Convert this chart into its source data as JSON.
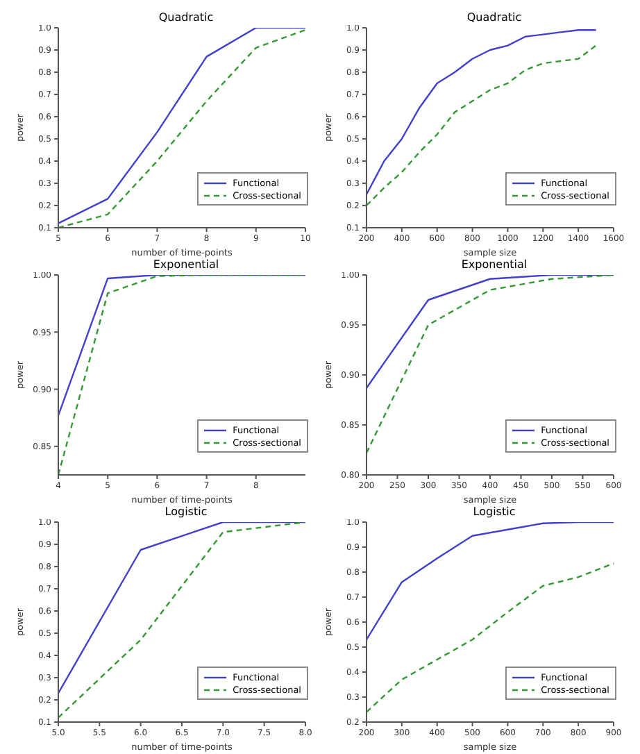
{
  "chart_data": [
    {
      "type": "line",
      "title": "Quadratic",
      "xlabel": "number of time-points",
      "ylabel": "power",
      "x": [
        5,
        6,
        7,
        8,
        9,
        10
      ],
      "xlim": [
        5,
        10
      ],
      "xticks": [
        5,
        6,
        7,
        8,
        9,
        10
      ],
      "ylim": [
        0.1,
        1.0
      ],
      "yticks": [
        0.1,
        0.2,
        0.3,
        0.4,
        0.5,
        0.6,
        0.7,
        0.8,
        0.9,
        {
          "value": 1,
          "label": "1.0"
        }
      ],
      "grid": false,
      "legend": "bottom right",
      "marker": "none",
      "series": [
        {
          "name": "Functional",
          "color": "#4040cc",
          "line_style": "solid",
          "values": [
            0.12,
            0.23,
            0.53,
            0.87,
            1.0,
            1.0
          ]
        },
        {
          "name": "Cross-sectional",
          "color": "#339933",
          "line_style": "dashed",
          "values": [
            0.1,
            0.16,
            0.4,
            0.67,
            0.91,
            0.99
          ]
        }
      ]
    },
    {
      "type": "line",
      "title": "Quadratic",
      "xlabel": "sample size",
      "ylabel": "power",
      "x": [
        200,
        300,
        400,
        500,
        600,
        700,
        800,
        900,
        1000,
        1100,
        1200,
        1300,
        1400,
        1500
      ],
      "xlim": [
        200,
        1600
      ],
      "xticks": [
        200,
        400,
        600,
        800,
        1000,
        1200,
        1400,
        1600
      ],
      "ylim": [
        0.1,
        1.0
      ],
      "yticks": [
        0.1,
        0.2,
        0.3,
        0.4,
        0.5,
        0.6,
        0.7,
        0.8,
        0.9,
        {
          "value": 1,
          "label": "1.0"
        }
      ],
      "grid": false,
      "legend": "bottom right",
      "marker": "none",
      "series": [
        {
          "name": "Functional",
          "color": "#4040cc",
          "line_style": "solid",
          "values": [
            0.25,
            0.4,
            0.5,
            0.64,
            0.75,
            0.8,
            0.86,
            0.9,
            0.92,
            0.96,
            0.97,
            0.98,
            0.99,
            0.99
          ]
        },
        {
          "name": "Cross-sectional",
          "color": "#339933",
          "line_style": "dashed",
          "values": [
            0.2,
            0.28,
            0.35,
            0.44,
            0.52,
            0.62,
            0.67,
            0.72,
            0.75,
            0.81,
            0.84,
            0.85,
            0.86,
            0.92
          ]
        }
      ]
    },
    {
      "type": "line",
      "title": "Exponential",
      "xlabel": "number of time-points",
      "ylabel": "power",
      "x": [
        4,
        5,
        6,
        7,
        8,
        9
      ],
      "xlim": [
        4,
        9
      ],
      "xticks": [
        4,
        5,
        6,
        7,
        8
      ],
      "ylim": [
        0.825,
        1.0
      ],
      "yticks": [
        0.85,
        {
          "value": 0.9,
          "label": "0.90"
        },
        0.95,
        {
          "value": 1,
          "label": "1.00"
        }
      ],
      "grid": false,
      "legend": "bottom right",
      "marker": "none",
      "series": [
        {
          "name": "Functional",
          "color": "#4040cc",
          "line_style": "solid",
          "values": [
            0.877,
            0.997,
            1.0,
            1.0,
            1.0,
            1.0
          ]
        },
        {
          "name": "Cross-sectional",
          "color": "#339933",
          "line_style": "dashed",
          "values": [
            0.825,
            0.984,
            0.999,
            1.0,
            1.0,
            1.0
          ]
        }
      ]
    },
    {
      "type": "line",
      "title": "Exponential",
      "xlabel": "sample size",
      "ylabel": "power",
      "x": [
        200,
        300,
        400,
        500,
        600
      ],
      "xlim": [
        200,
        600
      ],
      "xticks": [
        200,
        250,
        300,
        350,
        400,
        450,
        500,
        550,
        600
      ],
      "ylim": [
        0.8,
        1.0
      ],
      "yticks": [
        {
          "value": 0.8,
          "label": "0.80"
        },
        0.85,
        {
          "value": 0.9,
          "label": "0.90"
        },
        0.95,
        {
          "value": 1,
          "label": "1.00"
        }
      ],
      "grid": false,
      "legend": "bottom right",
      "marker": "none",
      "series": [
        {
          "name": "Functional",
          "color": "#4040cc",
          "line_style": "solid",
          "values": [
            0.887,
            0.975,
            0.996,
            1.0,
            1.0
          ]
        },
        {
          "name": "Cross-sectional",
          "color": "#339933",
          "line_style": "dashed",
          "values": [
            0.822,
            0.95,
            0.985,
            0.996,
            1.0
          ]
        }
      ]
    },
    {
      "type": "line",
      "title": "Logistic",
      "xlabel": "number of time-points",
      "ylabel": "power",
      "x": [
        5,
        6,
        7,
        8
      ],
      "xlim": [
        5,
        8
      ],
      "xticks": [
        {
          "value": 5,
          "label": "5.0"
        },
        5.5,
        {
          "value": 6,
          "label": "6.0"
        },
        6.5,
        {
          "value": 7,
          "label": "7.0"
        },
        7.5,
        {
          "value": 8,
          "label": "8.0"
        }
      ],
      "ylim": [
        0.1,
        1.0
      ],
      "yticks": [
        0.1,
        0.2,
        0.3,
        0.4,
        0.5,
        0.6,
        0.7,
        0.8,
        0.9,
        {
          "value": 1,
          "label": "1.0"
        }
      ],
      "grid": false,
      "legend": "bottom right",
      "marker": "none",
      "series": [
        {
          "name": "Functional",
          "color": "#4040cc",
          "line_style": "solid",
          "values": [
            0.23,
            0.875,
            1.0,
            1.0
          ]
        },
        {
          "name": "Cross-sectional",
          "color": "#339933",
          "line_style": "dashed",
          "values": [
            0.12,
            0.47,
            0.955,
            1.0
          ]
        }
      ]
    },
    {
      "type": "line",
      "title": "Logistic",
      "xlabel": "sample size",
      "ylabel": "power",
      "x": [
        200,
        300,
        400,
        500,
        600,
        700,
        800,
        900
      ],
      "xlim": [
        200,
        900
      ],
      "xticks": [
        200,
        300,
        400,
        500,
        600,
        700,
        800,
        900
      ],
      "ylim": [
        0.2,
        1.0
      ],
      "yticks": [
        0.2,
        0.3,
        0.4,
        0.5,
        0.6,
        0.7,
        0.8,
        0.9,
        {
          "value": 1,
          "label": "1.0"
        }
      ],
      "grid": false,
      "legend": "bottom right",
      "marker": "none",
      "series": [
        {
          "name": "Functional",
          "color": "#4040cc",
          "line_style": "solid",
          "values": [
            0.53,
            0.76,
            0.855,
            0.945,
            0.97,
            0.995,
            1.0,
            1.0
          ]
        },
        {
          "name": "Cross-sectional",
          "color": "#339933",
          "line_style": "dashed",
          "values": [
            0.24,
            0.37,
            0.45,
            0.53,
            0.64,
            0.745,
            0.78,
            0.835
          ]
        }
      ]
    }
  ]
}
